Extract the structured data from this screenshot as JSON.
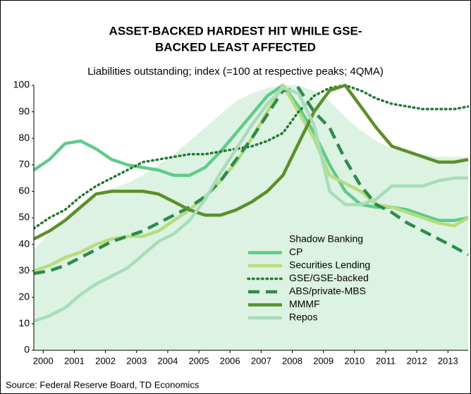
{
  "chart_data": {
    "type": "line",
    "title": [
      "ASSET-BACKED HARDEST HIT WHILE GSE-",
      "BACKED LEAST AFFECTED"
    ],
    "subtitle": "Liabilities outstanding; index (=100 at respective peaks; 4QMA)",
    "source": "Source: Federal Reserve Board, TD Economics",
    "x": [
      1999.7,
      2000.2,
      2000.7,
      2001.2,
      2001.7,
      2002.2,
      2002.7,
      2003.2,
      2003.7,
      2004.2,
      2004.7,
      2005.2,
      2005.7,
      2006.2,
      2006.7,
      2007.2,
      2007.7,
      2008.2,
      2008.7,
      2009.2,
      2009.7,
      2010.2,
      2010.7,
      2011.2,
      2011.7,
      2012.2,
      2012.7,
      2013.2,
      2013.65
    ],
    "xlim": [
      1999.7,
      2013.65
    ],
    "xticks": [
      2000,
      2001,
      2002,
      2003,
      2004,
      2005,
      2006,
      2007,
      2008,
      2009,
      2010,
      2011,
      2012,
      2013
    ],
    "ylim": [
      0,
      100
    ],
    "yticks": [
      0,
      10,
      20,
      30,
      40,
      50,
      60,
      70,
      80,
      90,
      100
    ],
    "grid": false,
    "legend": "lower right",
    "series": [
      {
        "name": "Shadow Banking",
        "color": "#dcf2e2",
        "style": "area",
        "values": [
          38,
          44,
          50,
          55,
          58,
          61,
          63,
          66,
          70,
          74,
          79,
          84,
          89,
          94,
          97,
          99,
          100,
          100,
          98,
          94,
          88,
          83,
          79,
          76,
          75,
          74,
          73,
          73,
          73
        ]
      },
      {
        "name": "CP",
        "color": "#5fcb8a",
        "style": "solid",
        "values": [
          68,
          72,
          78,
          79,
          76,
          72,
          70,
          69,
          68,
          66,
          66,
          69,
          75,
          82,
          89,
          96,
          100,
          92,
          82,
          70,
          60,
          55,
          54,
          54,
          53,
          51,
          49,
          49,
          50
        ]
      },
      {
        "name": "Securities Lending",
        "color": "#b7dc7c",
        "style": "solid",
        "values": [
          30,
          32,
          35,
          37,
          40,
          42,
          43,
          43,
          45,
          49,
          53,
          58,
          64,
          71,
          80,
          90,
          100,
          90,
          80,
          66,
          63,
          60,
          55,
          54,
          52,
          50,
          48,
          47,
          50
        ]
      },
      {
        "name": "GSE/GSE-backed",
        "color": "#1f7a30",
        "style": "dotted",
        "values": [
          46,
          50,
          53,
          58,
          62,
          65,
          68,
          71,
          72,
          73,
          74,
          74,
          75,
          76,
          77,
          79,
          82,
          90,
          96,
          99,
          100,
          98,
          95,
          93,
          92,
          91,
          91,
          91,
          92
        ]
      },
      {
        "name": "ABS/private-MBS",
        "color": "#2f8a4b",
        "style": "dashed",
        "values": [
          29,
          30,
          32,
          35,
          38,
          41,
          43,
          45,
          48,
          51,
          54,
          58,
          64,
          72,
          80,
          89,
          98,
          99,
          90,
          84,
          72,
          62,
          55,
          52,
          48,
          45,
          42,
          39,
          36
        ]
      },
      {
        "name": "MMMF",
        "color": "#5b8f2b",
        "style": "solid",
        "values": [
          42,
          45,
          49,
          54,
          59,
          60,
          60,
          60,
          59,
          56,
          53,
          51,
          51,
          53,
          56,
          60,
          66,
          78,
          90,
          98,
          100,
          92,
          84,
          77,
          75,
          73,
          71,
          71,
          72
        ]
      },
      {
        "name": "Repos",
        "color": "#a9dcb9",
        "style": "solid",
        "values": [
          11,
          13,
          16,
          21,
          25,
          28,
          31,
          36,
          41,
          44,
          49,
          57,
          67,
          76,
          85,
          93,
          99,
          97,
          85,
          60,
          55,
          55,
          57,
          62,
          62,
          62,
          64,
          65,
          65
        ]
      }
    ]
  }
}
